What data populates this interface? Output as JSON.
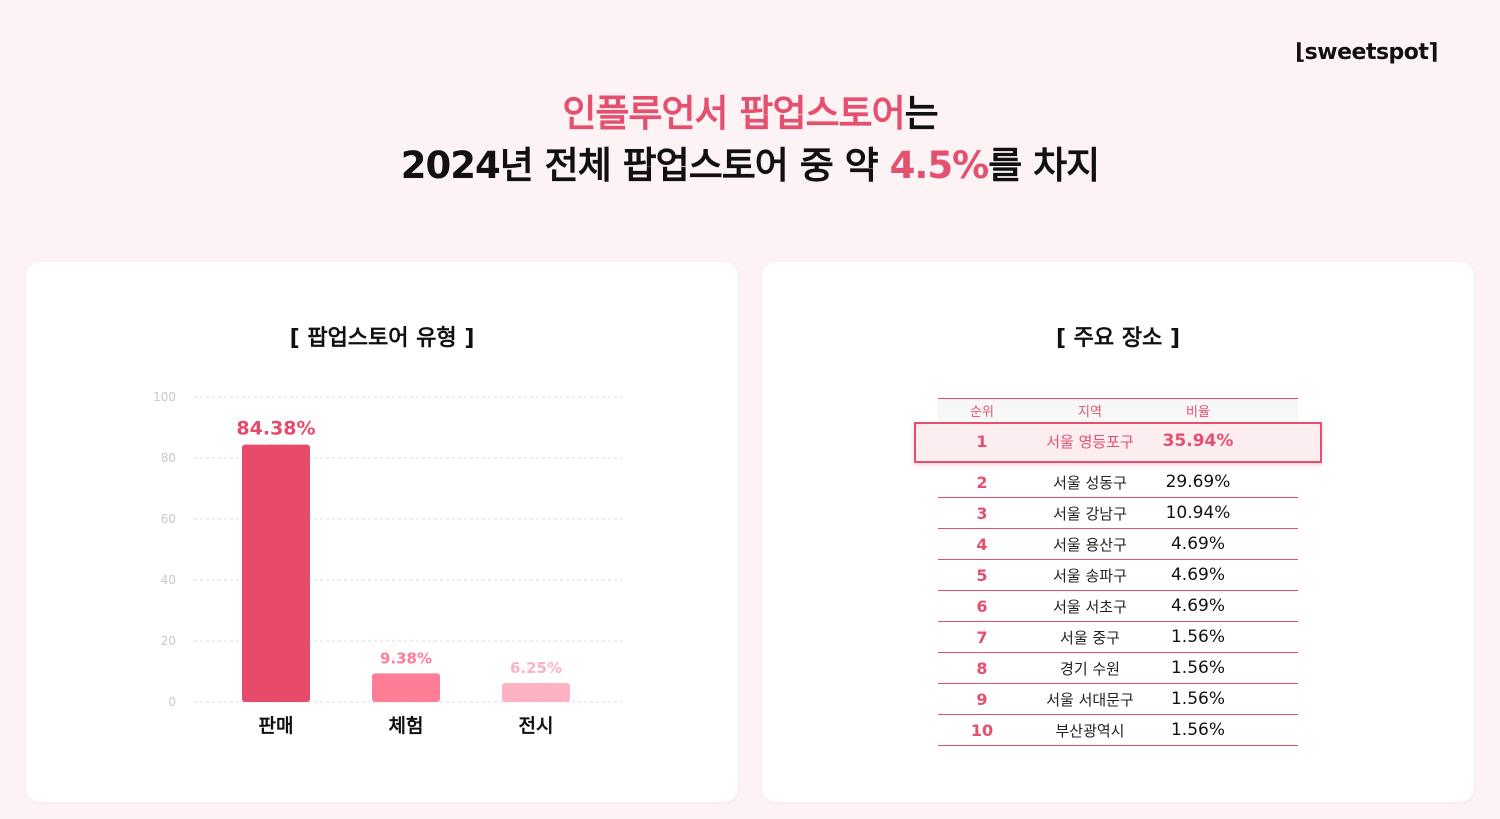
{
  "brand": {
    "logo_text": "⌊sweetspot⌉"
  },
  "headline": {
    "line1_accent": "인플루언서 팝업스토어",
    "line1_rest": "는",
    "line2_pre": "2024년 전체 팝업스토어 중 약 ",
    "line2_accent": "4.5%",
    "line2_post": "를 차지"
  },
  "colors": {
    "accent": "#e5506e",
    "bar1": "#e84a6a",
    "bar2": "#ff7d95",
    "bar3": "#ffb3c2",
    "background": "#fdf3f4"
  },
  "chart_data": {
    "type": "bar",
    "title": "[ 팝업스토어 유형 ]",
    "categories": [
      "판매",
      "체험",
      "전시"
    ],
    "values": [
      84.38,
      9.38,
      6.25
    ],
    "value_labels": [
      "84.38%",
      "9.38%",
      "6.25%"
    ],
    "ylim": [
      0,
      100
    ],
    "yticks": [
      0,
      20,
      40,
      60,
      80,
      100
    ],
    "grid": true,
    "xlabel": "",
    "ylabel": ""
  },
  "locations": {
    "title": "[ 주요 장소 ]",
    "headers": {
      "rank": "순위",
      "region": "지역",
      "ratio": "비율"
    },
    "rows": [
      {
        "rank": "1",
        "region": "서울 영등포구",
        "ratio": "35.94%"
      },
      {
        "rank": "2",
        "region": "서울 성동구",
        "ratio": "29.69%"
      },
      {
        "rank": "3",
        "region": "서울 강남구",
        "ratio": "10.94%"
      },
      {
        "rank": "4",
        "region": "서울 용산구",
        "ratio": "4.69%"
      },
      {
        "rank": "5",
        "region": "서울 송파구",
        "ratio": "4.69%"
      },
      {
        "rank": "6",
        "region": "서울 서초구",
        "ratio": "4.69%"
      },
      {
        "rank": "7",
        "region": "서울 중구",
        "ratio": "1.56%"
      },
      {
        "rank": "8",
        "region": "경기 수원",
        "ratio": "1.56%"
      },
      {
        "rank": "9",
        "region": "서울 서대문구",
        "ratio": "1.56%"
      },
      {
        "rank": "10",
        "region": "부산광역시",
        "ratio": "1.56%"
      }
    ]
  }
}
